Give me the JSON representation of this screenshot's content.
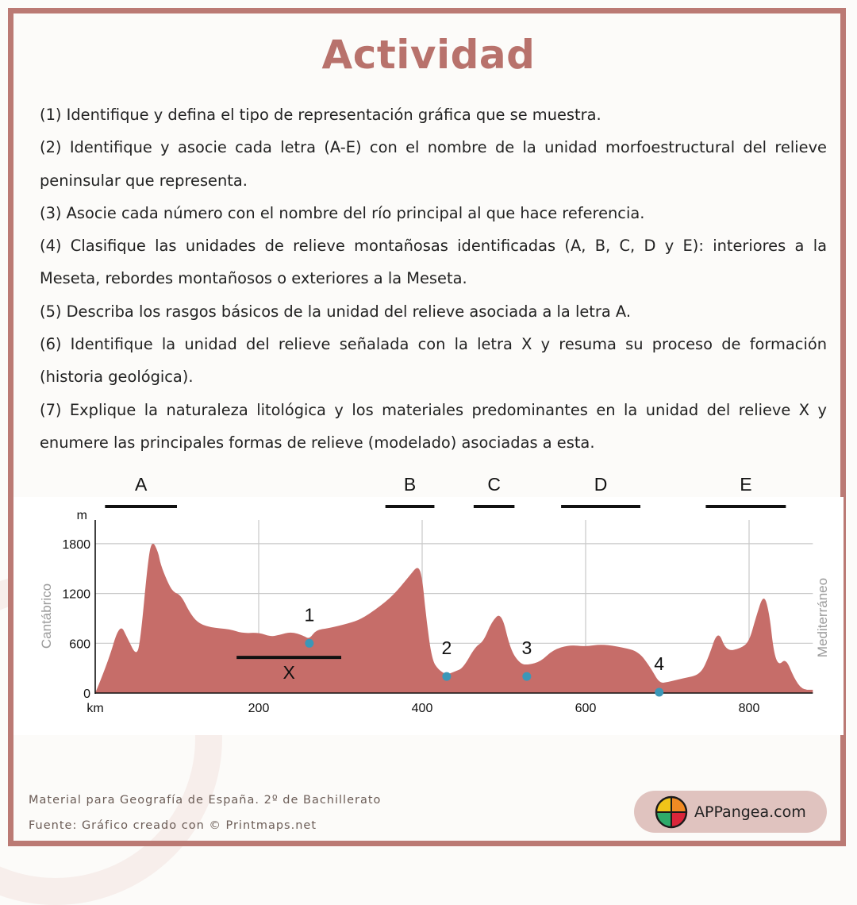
{
  "title": "Actividad",
  "questions": [
    "(1) Identifique y defina el tipo de representación gráfica que se muestra.",
    "(2) Identifique y asocie cada letra (A-E) con el nombre de la unidad morfoestructural del relieve peninsular que representa.",
    "(3) Asocie cada número con el nombre del río principal al que hace referencia.",
    "(4) Clasifique las unidades de relieve montañosas identificadas (A, B, C, D y E): interiores a la Meseta, rebordes montañosos o exteriores a la Meseta.",
    "(5) Describa los rasgos básicos de la unidad del relieve asociada a la letra A.",
    "(6) Identifique la unidad del relieve señalada con la letra X y resuma su proceso de formación (historia geológica).",
    "(7) Explique la naturaleza litológica y los materiales predominantes en la unidad del relieve X y enumere las principales formas de relieve (modelado) asociadas a esta."
  ],
  "chart_data": {
    "type": "area",
    "title": "",
    "xlabel": "km",
    "ylabel": "m",
    "left_side_label": "Cantábrico",
    "right_side_label": "Mediterráneo",
    "x_ticks": [
      200,
      400,
      600,
      800
    ],
    "y_ticks": [
      0,
      600,
      1200,
      1800
    ],
    "xlim": [
      0,
      878
    ],
    "ylim": [
      0,
      1900
    ],
    "grid": true,
    "fill_color": "#c66d69",
    "x": [
      0,
      15,
      30,
      40,
      50,
      55,
      65,
      70,
      77,
      80,
      88,
      95,
      105,
      115,
      125,
      140,
      165,
      180,
      200,
      215,
      225,
      240,
      255,
      262,
      270,
      285,
      310,
      325,
      345,
      365,
      385,
      395,
      400,
      405,
      412,
      420,
      430,
      440,
      450,
      465,
      475,
      485,
      497,
      508,
      520,
      530,
      545,
      560,
      580,
      600,
      620,
      645,
      665,
      680,
      690,
      700,
      720,
      740,
      750,
      762,
      772,
      790,
      800,
      808,
      818,
      825,
      830,
      836,
      845,
      855,
      865,
      878
    ],
    "elevation": [
      0,
      350,
      850,
      650,
      450,
      600,
      1650,
      1840,
      1700,
      1550,
      1350,
      1220,
      1180,
      980,
      850,
      790,
      770,
      720,
      730,
      680,
      700,
      740,
      690,
      650,
      760,
      780,
      840,
      890,
      1020,
      1180,
      1420,
      1540,
      1400,
      900,
      400,
      280,
      220,
      260,
      300,
      560,
      620,
      860,
      980,
      520,
      350,
      340,
      380,
      520,
      580,
      560,
      590,
      550,
      500,
      300,
      120,
      130,
      180,
      220,
      420,
      770,
      500,
      540,
      620,
      900,
      1210,
      950,
      500,
      330,
      420,
      180,
      40,
      40
    ],
    "ranges": [
      {
        "label": "A",
        "x_start": 12,
        "x_end": 100
      },
      {
        "label": "B",
        "x_start": 355,
        "x_end": 415
      },
      {
        "label": "C",
        "x_start": 463,
        "x_end": 513
      },
      {
        "label": "D",
        "x_start": 570,
        "x_end": 667
      },
      {
        "label": "E",
        "x_start": 747,
        "x_end": 845
      }
    ],
    "unit_x": {
      "label": "X",
      "x_start": 173,
      "x_end": 301,
      "elevation": 430
    },
    "rivers": [
      {
        "label": "1",
        "x": 262,
        "elevation": 600
      },
      {
        "label": "2",
        "x": 430,
        "elevation": 200
      },
      {
        "label": "3",
        "x": 528,
        "elevation": 200
      },
      {
        "label": "4",
        "x": 690,
        "elevation": 10
      }
    ],
    "river_color": "#3b97b8"
  },
  "footer": {
    "line1": "Material para Geografía de España. 2º de Bachillerato",
    "line2": "Fuente: Gráfico creado con © Printmaps.net"
  },
  "badge": {
    "text": "APPangea.com",
    "logo_colors": [
      "#f0c419",
      "#f08a24",
      "#2eaa6a",
      "#d9263a"
    ]
  }
}
